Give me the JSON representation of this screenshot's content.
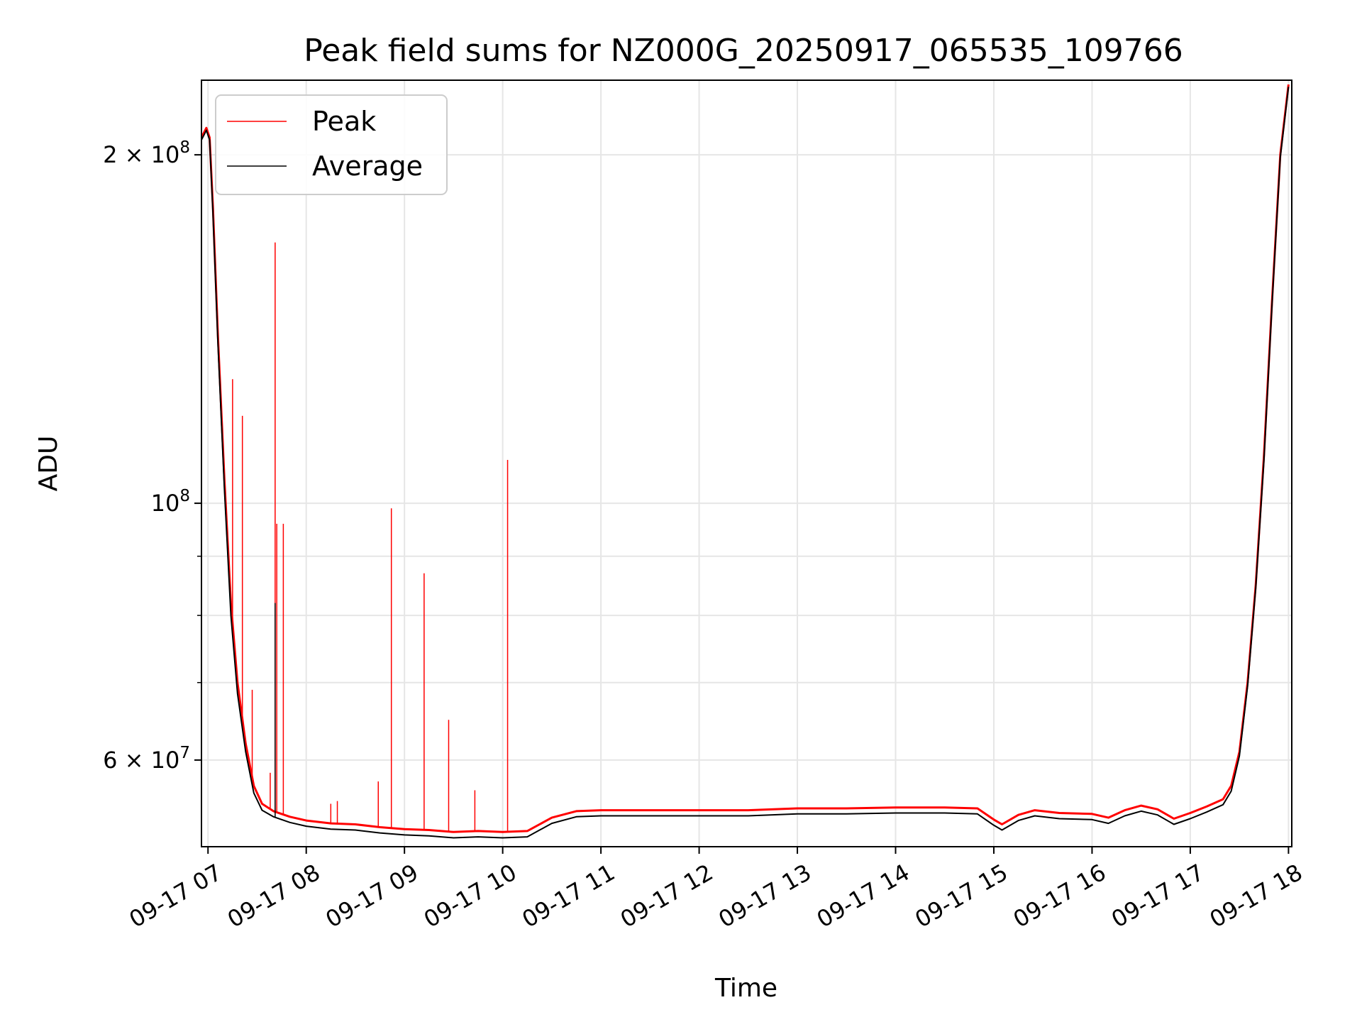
{
  "chart_data": {
    "type": "line",
    "title": "Peak field sums for NZ000G_20250917_065535_109766",
    "xlabel": "Time",
    "ylabel": "ADU",
    "y_scale": "log",
    "ylim": [
      50500000,
      232000000
    ],
    "xlim": [
      "2025-09-17 06:56",
      "2025-09-17 18:02"
    ],
    "grid": true,
    "legend_position": "top-left",
    "x_tick_labels": [
      "09-17 07",
      "09-17 08",
      "09-17 09",
      "09-17 10",
      "09-17 11",
      "09-17 12",
      "09-17 13",
      "09-17 14",
      "09-17 15",
      "09-17 16",
      "09-17 17",
      "09-17 18"
    ],
    "y_tick_labels": [
      {
        "value": 200000000,
        "mantissa": "2",
        "exp": "8"
      },
      {
        "value": 100000000,
        "mantissa": "",
        "exp": "8"
      },
      {
        "value": 60000000,
        "mantissa": "6",
        "exp": "7"
      }
    ],
    "series": [
      {
        "name": "Peak",
        "color": "#ff0000",
        "points": [
          [
            "2025-09-17 06:56",
            207000000
          ],
          [
            "2025-09-17 06:59",
            211000000
          ],
          [
            "2025-09-17 07:01",
            207000000
          ],
          [
            "2025-09-17 07:03",
            180000000
          ],
          [
            "2025-09-17 07:06",
            140000000
          ],
          [
            "2025-09-17 07:10",
            105000000
          ],
          [
            "2025-09-17 07:14",
            82000000
          ],
          [
            "2025-09-17 07:18",
            70000000
          ],
          [
            "2025-09-17 07:23",
            62000000
          ],
          [
            "2025-09-17 07:28",
            57000000
          ],
          [
            "2025-09-17 07:33",
            55000000
          ],
          [
            "2025-09-17 07:40",
            54200000
          ],
          [
            "2025-09-17 07:50",
            53600000
          ],
          [
            "2025-09-17 08:00",
            53200000
          ],
          [
            "2025-09-17 08:15",
            52900000
          ],
          [
            "2025-09-17 08:30",
            52800000
          ],
          [
            "2025-09-17 08:45",
            52500000
          ],
          [
            "2025-09-17 09:00",
            52300000
          ],
          [
            "2025-09-17 09:15",
            52200000
          ],
          [
            "2025-09-17 09:30",
            52000000
          ],
          [
            "2025-09-17 09:45",
            52100000
          ],
          [
            "2025-09-17 10:00",
            52000000
          ],
          [
            "2025-09-17 10:15",
            52100000
          ],
          [
            "2025-09-17 10:30",
            53500000
          ],
          [
            "2025-09-17 10:45",
            54200000
          ],
          [
            "2025-09-17 11:00",
            54300000
          ],
          [
            "2025-09-17 11:30",
            54300000
          ],
          [
            "2025-09-17 12:00",
            54300000
          ],
          [
            "2025-09-17 12:30",
            54300000
          ],
          [
            "2025-09-17 13:00",
            54500000
          ],
          [
            "2025-09-17 13:30",
            54500000
          ],
          [
            "2025-09-17 14:00",
            54600000
          ],
          [
            "2025-09-17 14:30",
            54600000
          ],
          [
            "2025-09-17 14:50",
            54500000
          ],
          [
            "2025-09-17 15:00",
            53300000
          ],
          [
            "2025-09-17 15:05",
            52800000
          ],
          [
            "2025-09-17 15:15",
            53800000
          ],
          [
            "2025-09-17 15:25",
            54300000
          ],
          [
            "2025-09-17 15:40",
            54000000
          ],
          [
            "2025-09-17 16:00",
            53900000
          ],
          [
            "2025-09-17 16:10",
            53500000
          ],
          [
            "2025-09-17 16:20",
            54300000
          ],
          [
            "2025-09-17 16:30",
            54800000
          ],
          [
            "2025-09-17 16:40",
            54400000
          ],
          [
            "2025-09-17 16:50",
            53400000
          ],
          [
            "2025-09-17 17:00",
            54000000
          ],
          [
            "2025-09-17 17:10",
            54700000
          ],
          [
            "2025-09-17 17:20",
            55500000
          ],
          [
            "2025-09-17 17:25",
            57000000
          ],
          [
            "2025-09-17 17:30",
            61000000
          ],
          [
            "2025-09-17 17:35",
            70000000
          ],
          [
            "2025-09-17 17:40",
            85000000
          ],
          [
            "2025-09-17 17:45",
            110000000
          ],
          [
            "2025-09-17 17:50",
            150000000
          ],
          [
            "2025-09-17 17:55",
            200000000
          ],
          [
            "2025-09-17 18:00",
            230000000
          ]
        ],
        "spikes": [
          [
            "2025-09-17 07:15",
            128000000
          ],
          [
            "2025-09-17 07:21",
            119000000
          ],
          [
            "2025-09-17 07:27",
            69000000
          ],
          [
            "2025-09-17 07:38",
            58500000
          ],
          [
            "2025-09-17 07:41",
            168000000
          ],
          [
            "2025-09-17 07:42",
            96000000
          ],
          [
            "2025-09-17 07:46",
            96000000
          ],
          [
            "2025-09-17 08:15",
            55000000
          ],
          [
            "2025-09-17 08:19",
            55300000
          ],
          [
            "2025-09-17 08:44",
            57500000
          ],
          [
            "2025-09-17 08:52",
            99000000
          ],
          [
            "2025-09-17 09:12",
            87000000
          ],
          [
            "2025-09-17 09:27",
            65000000
          ],
          [
            "2025-09-17 09:43",
            56500000
          ],
          [
            "2025-09-17 10:03",
            109000000
          ]
        ]
      },
      {
        "name": "Average",
        "color": "#000000",
        "points": [
          [
            "2025-09-17 06:56",
            206000000
          ],
          [
            "2025-09-17 06:59",
            210000000
          ],
          [
            "2025-09-17 07:01",
            206000000
          ],
          [
            "2025-09-17 07:03",
            178000000
          ],
          [
            "2025-09-17 07:06",
            138000000
          ],
          [
            "2025-09-17 07:10",
            103000000
          ],
          [
            "2025-09-17 07:14",
            80000000
          ],
          [
            "2025-09-17 07:18",
            68500000
          ],
          [
            "2025-09-17 07:23",
            61000000
          ],
          [
            "2025-09-17 07:28",
            56200000
          ],
          [
            "2025-09-17 07:33",
            54300000
          ],
          [
            "2025-09-17 07:40",
            53600000
          ],
          [
            "2025-09-17 07:50",
            53000000
          ],
          [
            "2025-09-17 08:00",
            52600000
          ],
          [
            "2025-09-17 08:15",
            52300000
          ],
          [
            "2025-09-17 08:30",
            52200000
          ],
          [
            "2025-09-17 08:45",
            51900000
          ],
          [
            "2025-09-17 09:00",
            51700000
          ],
          [
            "2025-09-17 09:15",
            51600000
          ],
          [
            "2025-09-17 09:30",
            51400000
          ],
          [
            "2025-09-17 09:45",
            51500000
          ],
          [
            "2025-09-17 10:00",
            51400000
          ],
          [
            "2025-09-17 10:15",
            51500000
          ],
          [
            "2025-09-17 10:30",
            52900000
          ],
          [
            "2025-09-17 10:45",
            53600000
          ],
          [
            "2025-09-17 11:00",
            53700000
          ],
          [
            "2025-09-17 11:30",
            53700000
          ],
          [
            "2025-09-17 12:00",
            53700000
          ],
          [
            "2025-09-17 12:30",
            53700000
          ],
          [
            "2025-09-17 13:00",
            53900000
          ],
          [
            "2025-09-17 13:30",
            53900000
          ],
          [
            "2025-09-17 14:00",
            54000000
          ],
          [
            "2025-09-17 14:30",
            54000000
          ],
          [
            "2025-09-17 14:50",
            53900000
          ],
          [
            "2025-09-17 15:00",
            52700000
          ],
          [
            "2025-09-17 15:05",
            52200000
          ],
          [
            "2025-09-17 15:15",
            53200000
          ],
          [
            "2025-09-17 15:25",
            53700000
          ],
          [
            "2025-09-17 15:40",
            53400000
          ],
          [
            "2025-09-17 16:00",
            53300000
          ],
          [
            "2025-09-17 16:10",
            52900000
          ],
          [
            "2025-09-17 16:20",
            53700000
          ],
          [
            "2025-09-17 16:30",
            54200000
          ],
          [
            "2025-09-17 16:40",
            53800000
          ],
          [
            "2025-09-17 16:50",
            52800000
          ],
          [
            "2025-09-17 17:00",
            53400000
          ],
          [
            "2025-09-17 17:10",
            54100000
          ],
          [
            "2025-09-17 17:20",
            54900000
          ],
          [
            "2025-09-17 17:25",
            56400000
          ],
          [
            "2025-09-17 17:30",
            60500000
          ],
          [
            "2025-09-17 17:35",
            69500000
          ],
          [
            "2025-09-17 17:40",
            84500000
          ],
          [
            "2025-09-17 17:45",
            109000000
          ],
          [
            "2025-09-17 17:50",
            149000000
          ],
          [
            "2025-09-17 17:55",
            199000000
          ],
          [
            "2025-09-17 18:00",
            229000000
          ]
        ],
        "spikes": [
          [
            "2025-09-17 07:41",
            82000000
          ]
        ]
      }
    ]
  }
}
